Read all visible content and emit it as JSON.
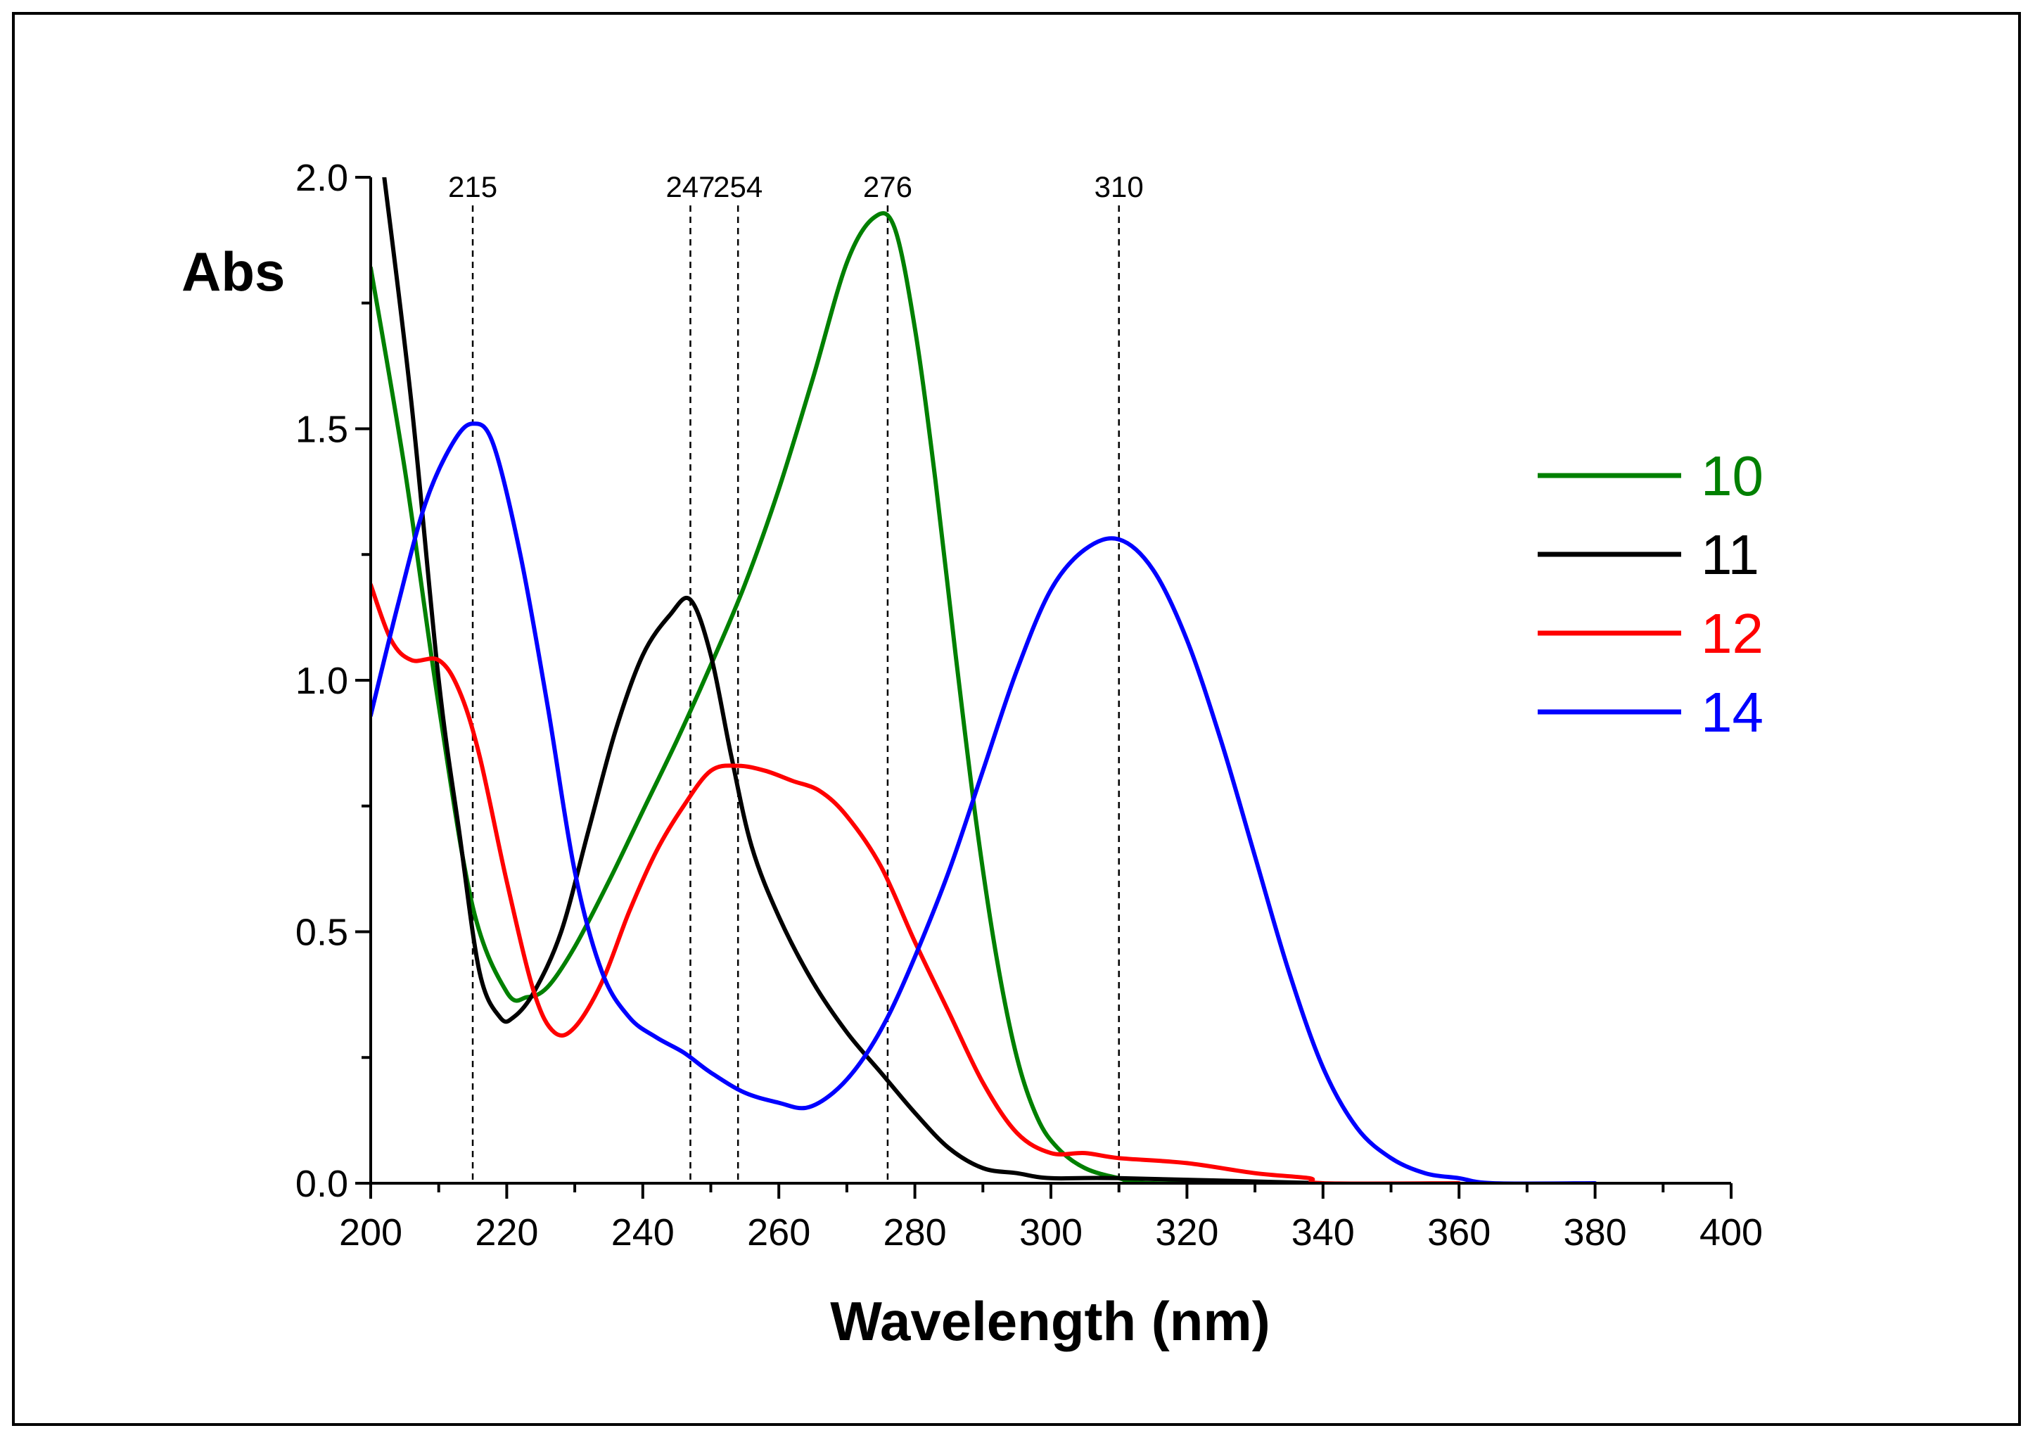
{
  "chart_data": {
    "type": "line",
    "title": "",
    "xlabel": "Wavelength (nm)",
    "ylabel": "Abs",
    "xlim": [
      200,
      400
    ],
    "ylim": [
      0,
      2.0
    ],
    "xticks": [
      200,
      220,
      240,
      260,
      280,
      300,
      320,
      340,
      360,
      380,
      400
    ],
    "xtick_labels": [
      "200",
      "220",
      "240",
      "260",
      "280",
      "300",
      "320",
      "340",
      "360",
      "380",
      "400"
    ],
    "yticks": [
      0.0,
      0.5,
      1.0,
      1.5,
      2.0
    ],
    "ytick_labels": [
      "0.0",
      "0.5",
      "1.0",
      "1.5",
      "2.0"
    ],
    "grid": false,
    "legend_position": "right",
    "peak_markers": [
      {
        "x": 215,
        "label": "215"
      },
      {
        "x": 247,
        "label": "247"
      },
      {
        "x": 254,
        "label": "254"
      },
      {
        "x": 276,
        "label": "276"
      },
      {
        "x": 310,
        "label": "310"
      }
    ],
    "series": [
      {
        "name": "10",
        "color": "#008000",
        "points": [
          [
            200,
            1.82
          ],
          [
            205,
            1.42
          ],
          [
            210,
            0.95
          ],
          [
            215,
            0.55
          ],
          [
            220,
            0.38
          ],
          [
            223,
            0.37
          ],
          [
            226,
            0.39
          ],
          [
            230,
            0.47
          ],
          [
            235,
            0.6
          ],
          [
            240,
            0.74
          ],
          [
            245,
            0.88
          ],
          [
            250,
            1.03
          ],
          [
            255,
            1.19
          ],
          [
            260,
            1.38
          ],
          [
            265,
            1.6
          ],
          [
            270,
            1.83
          ],
          [
            274,
            1.92
          ],
          [
            277,
            1.9
          ],
          [
            280,
            1.7
          ],
          [
            283,
            1.4
          ],
          [
            286,
            1.05
          ],
          [
            289,
            0.72
          ],
          [
            292,
            0.45
          ],
          [
            295,
            0.25
          ],
          [
            298,
            0.13
          ],
          [
            301,
            0.07
          ],
          [
            305,
            0.03
          ],
          [
            310,
            0.01
          ],
          [
            315,
            0.0
          ],
          [
            340,
            0.0
          ]
        ]
      },
      {
        "name": "11",
        "color": "#000000",
        "points": [
          [
            202,
            2.0
          ],
          [
            206,
            1.55
          ],
          [
            210,
            1.0
          ],
          [
            213,
            0.7
          ],
          [
            216,
            0.42
          ],
          [
            219,
            0.33
          ],
          [
            221,
            0.33
          ],
          [
            224,
            0.38
          ],
          [
            228,
            0.5
          ],
          [
            232,
            0.7
          ],
          [
            236,
            0.9
          ],
          [
            240,
            1.05
          ],
          [
            244,
            1.13
          ],
          [
            247,
            1.16
          ],
          [
            250,
            1.05
          ],
          [
            253,
            0.85
          ],
          [
            256,
            0.67
          ],
          [
            260,
            0.53
          ],
          [
            265,
            0.4
          ],
          [
            270,
            0.3
          ],
          [
            275,
            0.22
          ],
          [
            280,
            0.14
          ],
          [
            285,
            0.07
          ],
          [
            290,
            0.03
          ],
          [
            295,
            0.02
          ],
          [
            300,
            0.01
          ],
          [
            310,
            0.01
          ],
          [
            340,
            0.0
          ]
        ]
      },
      {
        "name": "12",
        "color": "#ff0000",
        "points": [
          [
            200,
            1.19
          ],
          [
            203,
            1.08
          ],
          [
            206,
            1.04
          ],
          [
            210,
            1.04
          ],
          [
            213,
            0.98
          ],
          [
            216,
            0.85
          ],
          [
            220,
            0.6
          ],
          [
            224,
            0.38
          ],
          [
            227,
            0.3
          ],
          [
            230,
            0.31
          ],
          [
            234,
            0.4
          ],
          [
            238,
            0.54
          ],
          [
            242,
            0.66
          ],
          [
            246,
            0.75
          ],
          [
            250,
            0.82
          ],
          [
            254,
            0.83
          ],
          [
            258,
            0.82
          ],
          [
            262,
            0.8
          ],
          [
            266,
            0.78
          ],
          [
            270,
            0.73
          ],
          [
            275,
            0.63
          ],
          [
            280,
            0.48
          ],
          [
            285,
            0.34
          ],
          [
            290,
            0.2
          ],
          [
            295,
            0.1
          ],
          [
            300,
            0.06
          ],
          [
            305,
            0.06
          ],
          [
            310,
            0.05
          ],
          [
            320,
            0.04
          ],
          [
            330,
            0.02
          ],
          [
            338,
            0.01
          ],
          [
            340,
            0.0
          ],
          [
            360,
            0.0
          ]
        ]
      },
      {
        "name": "14",
        "color": "#0000ff",
        "points": [
          [
            200,
            0.93
          ],
          [
            204,
            1.15
          ],
          [
            208,
            1.35
          ],
          [
            212,
            1.47
          ],
          [
            215,
            1.51
          ],
          [
            218,
            1.47
          ],
          [
            222,
            1.25
          ],
          [
            226,
            0.95
          ],
          [
            230,
            0.62
          ],
          [
            234,
            0.42
          ],
          [
            238,
            0.33
          ],
          [
            242,
            0.29
          ],
          [
            246,
            0.26
          ],
          [
            250,
            0.22
          ],
          [
            255,
            0.18
          ],
          [
            260,
            0.16
          ],
          [
            264,
            0.15
          ],
          [
            268,
            0.18
          ],
          [
            272,
            0.24
          ],
          [
            276,
            0.33
          ],
          [
            280,
            0.45
          ],
          [
            285,
            0.62
          ],
          [
            290,
            0.82
          ],
          [
            295,
            1.02
          ],
          [
            300,
            1.18
          ],
          [
            305,
            1.26
          ],
          [
            310,
            1.28
          ],
          [
            315,
            1.22
          ],
          [
            320,
            1.08
          ],
          [
            325,
            0.88
          ],
          [
            330,
            0.65
          ],
          [
            335,
            0.42
          ],
          [
            340,
            0.23
          ],
          [
            345,
            0.11
          ],
          [
            350,
            0.05
          ],
          [
            355,
            0.02
          ],
          [
            360,
            0.01
          ],
          [
            365,
            0.0
          ],
          [
            380,
            0.0
          ]
        ]
      }
    ]
  }
}
